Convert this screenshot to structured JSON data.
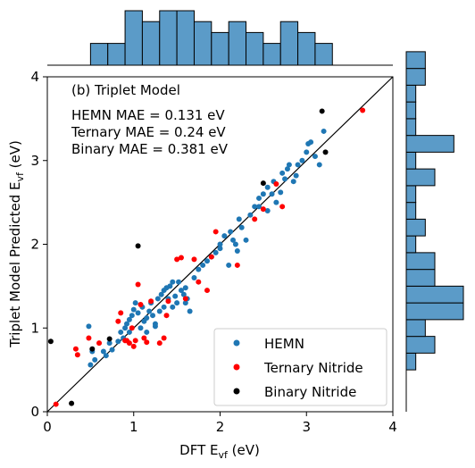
{
  "chart_data": {
    "type": "scatter",
    "panel_label": "(b) Triplet Model",
    "mae_lines": [
      "HEMN MAE = 0.131 eV",
      "Ternary MAE = 0.24 eV",
      "Binary MAE = 0.381 eV"
    ],
    "xlabel_main": "DFT E",
    "xlabel_sub": "vf",
    "xlabel_unit": " (eV)",
    "ylabel_main": "Triplet Model Predicted E",
    "ylabel_sub": "vf",
    "ylabel_unit": " (eV)",
    "xlim": [
      0,
      4
    ],
    "ylim": [
      0,
      4
    ],
    "xticks": [
      0,
      1,
      2,
      3,
      4
    ],
    "yticks": [
      0,
      1,
      2,
      3,
      4
    ],
    "diagonal": true,
    "grid": false,
    "legend_position": "bottom-right",
    "series": [
      {
        "name": "HEMN",
        "color": "#1f77b4",
        "points": [
          [
            0.5,
            0.56
          ],
          [
            0.52,
            0.72
          ],
          [
            0.48,
            1.02
          ],
          [
            0.55,
            0.62
          ],
          [
            0.68,
            0.67
          ],
          [
            0.72,
            0.82
          ],
          [
            0.75,
            0.74
          ],
          [
            0.82,
            0.84
          ],
          [
            0.85,
            0.95
          ],
          [
            0.88,
            0.88
          ],
          [
            0.9,
            1.0
          ],
          [
            0.92,
            1.05
          ],
          [
            0.95,
            1.1
          ],
          [
            0.98,
            1.15
          ],
          [
            1.0,
            1.22
          ],
          [
            1.02,
            1.3
          ],
          [
            1.05,
            1.18
          ],
          [
            1.08,
            1.0
          ],
          [
            1.1,
            1.25
          ],
          [
            1.12,
            1.08
          ],
          [
            1.15,
            1.12
          ],
          [
            1.18,
            1.2
          ],
          [
            1.2,
            1.3
          ],
          [
            1.22,
            1.15
          ],
          [
            1.25,
            1.02
          ],
          [
            1.28,
            1.35
          ],
          [
            1.3,
            1.2
          ],
          [
            1.32,
            1.4
          ],
          [
            1.35,
            1.45
          ],
          [
            1.38,
            1.48
          ],
          [
            1.4,
            1.35
          ],
          [
            1.42,
            1.5
          ],
          [
            1.45,
            1.25
          ],
          [
            1.48,
            1.38
          ],
          [
            1.5,
            1.3
          ],
          [
            1.52,
            1.55
          ],
          [
            1.55,
            1.45
          ],
          [
            1.58,
            1.4
          ],
          [
            1.6,
            1.48
          ],
          [
            1.62,
            1.35
          ],
          [
            1.65,
            1.2
          ],
          [
            1.7,
            1.6
          ],
          [
            1.75,
            1.7
          ],
          [
            1.8,
            1.75
          ],
          [
            1.85,
            1.8
          ],
          [
            1.9,
            1.85
          ],
          [
            1.95,
            1.9
          ],
          [
            2.0,
            1.95
          ],
          [
            2.05,
            2.1
          ],
          [
            2.1,
            1.75
          ],
          [
            2.12,
            2.15
          ],
          [
            2.15,
            2.05
          ],
          [
            2.18,
            2.0
          ],
          [
            2.2,
            1.92
          ],
          [
            2.22,
            2.3
          ],
          [
            2.25,
            2.2
          ],
          [
            2.3,
            2.05
          ],
          [
            2.35,
            2.35
          ],
          [
            2.4,
            2.45
          ],
          [
            2.45,
            2.55
          ],
          [
            2.5,
            2.6
          ],
          [
            2.55,
            2.68
          ],
          [
            2.6,
            2.6
          ],
          [
            2.62,
            2.75
          ],
          [
            2.65,
            2.5
          ],
          [
            2.7,
            2.62
          ],
          [
            2.72,
            2.85
          ],
          [
            2.75,
            2.78
          ],
          [
            2.78,
            2.9
          ],
          [
            2.8,
            2.95
          ],
          [
            2.85,
            2.75
          ],
          [
            2.88,
            2.82
          ],
          [
            2.9,
            2.95
          ],
          [
            2.95,
            3.0
          ],
          [
            3.0,
            3.1
          ],
          [
            3.02,
            3.2
          ],
          [
            3.05,
            3.22
          ],
          [
            3.1,
            3.05
          ],
          [
            3.15,
            2.95
          ],
          [
            3.2,
            3.35
          ],
          [
            1.35,
            1.25
          ],
          [
            1.6,
            1.3
          ],
          [
            1.25,
            1.05
          ],
          [
            0.95,
            0.95
          ],
          [
            0.65,
            0.72
          ],
          [
            2.45,
            2.45
          ],
          [
            2.55,
            2.4
          ],
          [
            1.15,
            0.95
          ],
          [
            1.45,
            1.55
          ],
          [
            2.0,
            2.0
          ]
        ]
      },
      {
        "name": "Ternary Nitride",
        "color": "#ff0000",
        "points": [
          [
            0.1,
            0.09
          ],
          [
            0.33,
            0.75
          ],
          [
            0.35,
            0.68
          ],
          [
            0.48,
            0.88
          ],
          [
            0.6,
            0.82
          ],
          [
            0.82,
            1.08
          ],
          [
            0.85,
            1.18
          ],
          [
            0.9,
            0.85
          ],
          [
            0.92,
            0.85
          ],
          [
            0.95,
            0.82
          ],
          [
            0.98,
            1.0
          ],
          [
            1.0,
            0.78
          ],
          [
            1.02,
            0.85
          ],
          [
            1.05,
            1.52
          ],
          [
            1.08,
            1.28
          ],
          [
            1.12,
            0.88
          ],
          [
            1.15,
            0.83
          ],
          [
            1.2,
            1.32
          ],
          [
            1.3,
            0.82
          ],
          [
            1.35,
            0.88
          ],
          [
            1.38,
            1.15
          ],
          [
            1.4,
            1.32
          ],
          [
            1.5,
            1.82
          ],
          [
            1.55,
            1.84
          ],
          [
            1.6,
            1.35
          ],
          [
            1.7,
            1.82
          ],
          [
            1.75,
            1.55
          ],
          [
            1.85,
            1.45
          ],
          [
            1.9,
            1.85
          ],
          [
            1.95,
            2.15
          ],
          [
            2.2,
            1.75
          ],
          [
            2.4,
            2.3
          ],
          [
            2.5,
            2.42
          ],
          [
            2.65,
            2.72
          ],
          [
            2.72,
            2.45
          ],
          [
            3.65,
            3.6
          ]
        ]
      },
      {
        "name": "Binary Nitride",
        "color": "#000000",
        "points": [
          [
            0.04,
            0.84
          ],
          [
            0.28,
            0.1
          ],
          [
            0.52,
            0.75
          ],
          [
            0.72,
            0.87
          ],
          [
            1.05,
            1.98
          ],
          [
            2.5,
            2.73
          ],
          [
            3.18,
            3.59
          ],
          [
            3.22,
            3.1
          ]
        ]
      }
    ],
    "top_histogram": {
      "bin_start": 0.5,
      "bin_width": 0.2,
      "counts": [
        2,
        2,
        5,
        4,
        5,
        5,
        4,
        3,
        4,
        3,
        2,
        4,
        3,
        2
      ]
    },
    "right_histogram": {
      "bin_start": 0.5,
      "bin_width": 0.2,
      "counts": [
        1,
        3,
        2,
        6,
        6,
        3,
        3,
        1,
        2,
        1,
        1,
        3,
        1,
        5,
        1,
        1,
        1,
        2,
        2
      ]
    }
  }
}
